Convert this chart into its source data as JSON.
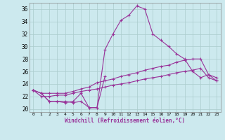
{
  "xlabel": "Windchill (Refroidissement éolien,°C)",
  "bg_color": "#cce9ee",
  "line_color": "#993399",
  "grid_color": "#aacccc",
  "xlim": [
    -0.5,
    23.5
  ],
  "ylim": [
    19.5,
    37.0
  ],
  "yticks": [
    20,
    22,
    24,
    26,
    28,
    30,
    32,
    34,
    36
  ],
  "xticks": [
    0,
    1,
    2,
    3,
    4,
    5,
    6,
    7,
    8,
    9,
    10,
    11,
    12,
    13,
    14,
    15,
    16,
    17,
    18,
    19,
    20,
    21,
    22,
    23
  ],
  "line_main_x": [
    0,
    1,
    2,
    3,
    4,
    5,
    6,
    7,
    8,
    9,
    10,
    11,
    12,
    13,
    14,
    15,
    16,
    17,
    18,
    19,
    20,
    21,
    22,
    23
  ],
  "line_main_y": [
    23.0,
    22.5,
    21.2,
    21.2,
    21.0,
    21.2,
    22.5,
    20.2,
    20.2,
    29.5,
    32.0,
    34.2,
    35.0,
    36.5,
    36.0,
    32.0,
    31.0,
    30.0,
    28.8,
    28.0,
    26.0,
    25.0,
    25.5,
    24.5
  ],
  "line_upper_x": [
    0,
    1,
    2,
    3,
    4,
    5,
    6,
    7,
    8,
    9,
    10,
    11,
    12,
    13,
    14,
    15,
    16,
    17,
    18,
    19,
    20,
    21,
    22,
    23
  ],
  "line_upper_y": [
    23.0,
    22.5,
    22.5,
    22.5,
    22.5,
    22.8,
    23.2,
    23.5,
    24.2,
    24.5,
    24.8,
    25.2,
    25.5,
    25.8,
    26.2,
    26.5,
    26.8,
    27.0,
    27.5,
    27.8,
    28.0,
    28.0,
    25.5,
    25.0
  ],
  "line_lower_x": [
    0,
    1,
    2,
    3,
    4,
    5,
    6,
    7,
    8,
    9,
    10,
    11,
    12,
    13,
    14,
    15,
    16,
    17,
    18,
    19,
    20,
    21,
    22,
    23
  ],
  "line_lower_y": [
    23.0,
    22.0,
    22.0,
    22.2,
    22.2,
    22.5,
    22.8,
    23.0,
    23.2,
    23.5,
    23.8,
    24.0,
    24.2,
    24.5,
    24.8,
    25.0,
    25.2,
    25.5,
    25.8,
    26.0,
    26.2,
    26.5,
    25.0,
    24.5
  ],
  "line_short_x": [
    0,
    1,
    2,
    3,
    4,
    5,
    6,
    7,
    8,
    9
  ],
  "line_short_y": [
    23.0,
    22.5,
    21.2,
    21.2,
    21.2,
    21.0,
    21.2,
    20.2,
    20.2,
    25.2
  ]
}
